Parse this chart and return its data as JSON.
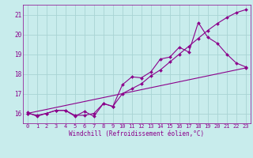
{
  "xlabel": "Windchill (Refroidissement éolien,°C)",
  "bg_color": "#c8ecec",
  "grid_color": "#a8d4d4",
  "line_color": "#8b008b",
  "xlim": [
    -0.5,
    23.5
  ],
  "ylim": [
    15.5,
    21.5
  ],
  "xticks": [
    0,
    1,
    2,
    3,
    4,
    5,
    6,
    7,
    8,
    9,
    10,
    11,
    12,
    13,
    14,
    15,
    16,
    17,
    18,
    19,
    20,
    21,
    22,
    23
  ],
  "yticks": [
    16,
    17,
    18,
    19,
    20,
    21
  ],
  "line1_x": [
    0,
    1,
    2,
    3,
    4,
    5,
    6,
    7,
    8,
    9,
    10,
    11,
    12,
    13,
    14,
    15,
    16,
    17,
    18,
    19,
    20,
    21,
    22,
    23
  ],
  "line1_y": [
    16.05,
    15.85,
    16.0,
    16.15,
    16.15,
    15.85,
    16.1,
    15.85,
    16.5,
    16.35,
    17.45,
    17.85,
    17.8,
    18.1,
    18.75,
    18.85,
    19.35,
    19.1,
    20.6,
    19.85,
    19.55,
    19.0,
    18.55,
    18.35
  ],
  "line2_x": [
    0,
    1,
    2,
    3,
    4,
    5,
    6,
    7,
    8,
    9,
    10,
    11,
    12,
    13,
    14,
    15,
    16,
    17,
    18,
    19,
    20,
    21,
    22,
    23
  ],
  "line2_y": [
    16.0,
    15.9,
    16.0,
    16.15,
    16.15,
    15.9,
    15.9,
    16.0,
    16.5,
    16.35,
    17.0,
    17.25,
    17.5,
    17.9,
    18.2,
    18.6,
    19.0,
    19.4,
    19.8,
    20.2,
    20.55,
    20.85,
    21.1,
    21.25
  ],
  "line3_x": [
    0,
    23
  ],
  "line3_y": [
    16.0,
    18.3
  ]
}
